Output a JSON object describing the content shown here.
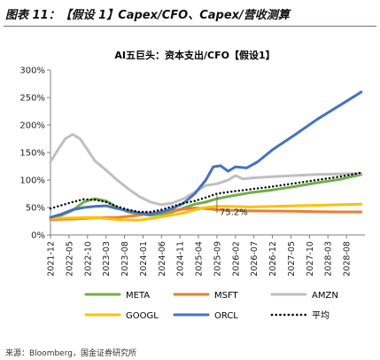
{
  "figure": {
    "title": "图表 11：【假设 1】Capex/CFO、Capex/营收测算",
    "source": "来源：Bloomberg，国金证券研究所"
  },
  "chart_data": {
    "type": "line",
    "title": "AI五巨头：资本支出/CFO【假设1】",
    "xlabel": "",
    "ylabel": "",
    "x_ticks": [
      "2021-12",
      "2022-05",
      "2022-10",
      "2023-03",
      "2023-08",
      "2024-01",
      "2024-06",
      "2024-11",
      "2025-04",
      "2025-09",
      "2026-02",
      "2026-07",
      "2026-12",
      "2027-05",
      "2027-10",
      "2028-03",
      "2028-08"
    ],
    "x_range": [
      "2021-12",
      "2029-01"
    ],
    "y_ticks": [
      "0%",
      "50%",
      "100%",
      "150%",
      "200%",
      "250%",
      "300%"
    ],
    "ylim": [
      0,
      300
    ],
    "y_unit": "%",
    "grid": false,
    "legend_position": "bottom",
    "annotation": {
      "text": "75.2%",
      "x": "2025-09",
      "y": 75.2
    },
    "series": [
      {
        "name": "META",
        "color": "#70ad47",
        "style": "solid",
        "points": [
          [
            "2021-12",
            32
          ],
          [
            "2022-03",
            36
          ],
          [
            "2022-06",
            45
          ],
          [
            "2022-09",
            60
          ],
          [
            "2022-12",
            66
          ],
          [
            "2023-03",
            62
          ],
          [
            "2023-06",
            50
          ],
          [
            "2023-09",
            42
          ],
          [
            "2023-12",
            38
          ],
          [
            "2024-03",
            36
          ],
          [
            "2024-06",
            38
          ],
          [
            "2024-09",
            42
          ],
          [
            "2024-12",
            49
          ],
          [
            "2025-03",
            56
          ],
          [
            "2025-06",
            60
          ],
          [
            "2025-09",
            66
          ],
          [
            "2025-12",
            70
          ],
          [
            "2026-06",
            77
          ],
          [
            "2026-12",
            82
          ],
          [
            "2027-06",
            88
          ],
          [
            "2027-12",
            95
          ],
          [
            "2028-06",
            101
          ],
          [
            "2028-12",
            110
          ]
        ]
      },
      {
        "name": "MSFT",
        "color": "#ed7d31",
        "style": "solid",
        "points": [
          [
            "2021-12",
            28
          ],
          [
            "2022-06",
            29
          ],
          [
            "2022-12",
            31
          ],
          [
            "2023-06",
            32
          ],
          [
            "2023-12",
            36
          ],
          [
            "2024-06",
            42
          ],
          [
            "2024-12",
            47
          ],
          [
            "2025-03",
            49
          ],
          [
            "2025-06",
            48
          ],
          [
            "2025-09",
            46
          ],
          [
            "2025-12",
            45
          ],
          [
            "2026-06",
            44
          ],
          [
            "2026-12",
            43.5
          ],
          [
            "2027-06",
            43
          ],
          [
            "2027-12",
            42.5
          ],
          [
            "2028-06",
            42
          ],
          [
            "2028-12",
            42
          ]
        ]
      },
      {
        "name": "AMZN",
        "color": "#bfbfbf",
        "style": "solid",
        "points": [
          [
            "2021-12",
            133
          ],
          [
            "2022-02",
            155
          ],
          [
            "2022-04",
            175
          ],
          [
            "2022-06",
            183
          ],
          [
            "2022-08",
            175
          ],
          [
            "2022-10",
            155
          ],
          [
            "2022-12",
            135
          ],
          [
            "2023-03",
            118
          ],
          [
            "2023-06",
            100
          ],
          [
            "2023-09",
            84
          ],
          [
            "2023-12",
            70
          ],
          [
            "2024-03",
            60
          ],
          [
            "2024-06",
            55
          ],
          [
            "2024-09",
            58
          ],
          [
            "2024-12",
            66
          ],
          [
            "2025-03",
            78
          ],
          [
            "2025-06",
            90
          ],
          [
            "2025-09",
            93
          ],
          [
            "2025-12",
            100
          ],
          [
            "2026-02",
            108
          ],
          [
            "2026-04",
            102
          ],
          [
            "2026-07",
            104
          ],
          [
            "2026-12",
            106
          ],
          [
            "2027-06",
            108
          ],
          [
            "2027-12",
            110
          ],
          [
            "2028-06",
            111
          ],
          [
            "2028-12",
            112
          ]
        ]
      },
      {
        "name": "GOOGL",
        "color": "#ffc000",
        "style": "solid",
        "points": [
          [
            "2021-12",
            30
          ],
          [
            "2022-06",
            31
          ],
          [
            "2022-12",
            32
          ],
          [
            "2023-06",
            28
          ],
          [
            "2023-12",
            27
          ],
          [
            "2024-06",
            33
          ],
          [
            "2024-12",
            40
          ],
          [
            "2025-03",
            46
          ],
          [
            "2025-06",
            50
          ],
          [
            "2025-09",
            52
          ],
          [
            "2025-12",
            52
          ],
          [
            "2026-06",
            51
          ],
          [
            "2026-12",
            52
          ],
          [
            "2027-06",
            53
          ],
          [
            "2027-12",
            54
          ],
          [
            "2028-06",
            55
          ],
          [
            "2028-12",
            56
          ]
        ]
      },
      {
        "name": "ORCL",
        "color": "#4472c4",
        "style": "solid",
        "points": [
          [
            "2021-12",
            32
          ],
          [
            "2022-03",
            38
          ],
          [
            "2022-06",
            46
          ],
          [
            "2022-09",
            50
          ],
          [
            "2022-12",
            52
          ],
          [
            "2023-03",
            53
          ],
          [
            "2023-06",
            48
          ],
          [
            "2023-09",
            44
          ],
          [
            "2023-12",
            40
          ],
          [
            "2024-03",
            38
          ],
          [
            "2024-06",
            42
          ],
          [
            "2024-09",
            48
          ],
          [
            "2024-12",
            58
          ],
          [
            "2025-03",
            75
          ],
          [
            "2025-06",
            100
          ],
          [
            "2025-08",
            124
          ],
          [
            "2025-10",
            126
          ],
          [
            "2025-12",
            116
          ],
          [
            "2026-02",
            124
          ],
          [
            "2026-05",
            122
          ],
          [
            "2026-08",
            133
          ],
          [
            "2026-12",
            155
          ],
          [
            "2027-06",
            182
          ],
          [
            "2027-12",
            210
          ],
          [
            "2028-06",
            235
          ],
          [
            "2028-12",
            260
          ]
        ]
      },
      {
        "name": "平均",
        "color": "#000000",
        "style": "dotted",
        "points": [
          [
            "2021-12",
            48
          ],
          [
            "2022-06",
            60
          ],
          [
            "2022-09",
            65
          ],
          [
            "2022-12",
            64
          ],
          [
            "2023-03",
            60
          ],
          [
            "2023-06",
            52
          ],
          [
            "2023-09",
            46
          ],
          [
            "2023-12",
            42
          ],
          [
            "2024-03",
            42
          ],
          [
            "2024-06",
            46
          ],
          [
            "2024-09",
            52
          ],
          [
            "2024-12",
            58
          ],
          [
            "2025-03",
            62
          ],
          [
            "2025-06",
            68
          ],
          [
            "2025-09",
            75.2
          ],
          [
            "2025-12",
            78
          ],
          [
            "2026-06",
            83
          ],
          [
            "2026-12",
            88
          ],
          [
            "2027-06",
            94
          ],
          [
            "2027-12",
            100
          ],
          [
            "2028-06",
            106
          ],
          [
            "2028-12",
            113
          ]
        ]
      }
    ]
  }
}
